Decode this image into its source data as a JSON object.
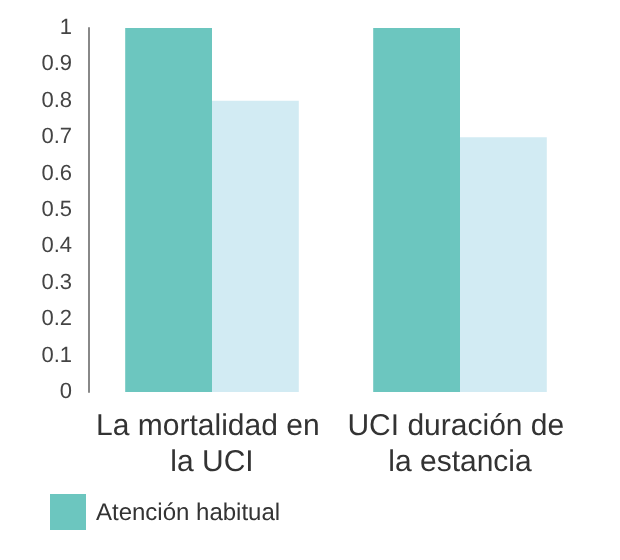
{
  "chart_data": {
    "type": "bar",
    "categories": [
      "La mortalidad en la UCI",
      "UCI duración de la estancia"
    ],
    "series": [
      {
        "name": "Atención habitual",
        "color": "#6cc6bf",
        "values": [
          1,
          1
        ]
      },
      {
        "color": "#d2ebf3",
        "values": [
          0.8,
          0.7
        ]
      }
    ],
    "ylim": [
      0,
      1
    ],
    "yticks": [
      0,
      0.1,
      0.2,
      0.3,
      0.4,
      0.5,
      0.6,
      0.7,
      0.8,
      0.9,
      1
    ],
    "grid": false,
    "legend": "bottom"
  }
}
